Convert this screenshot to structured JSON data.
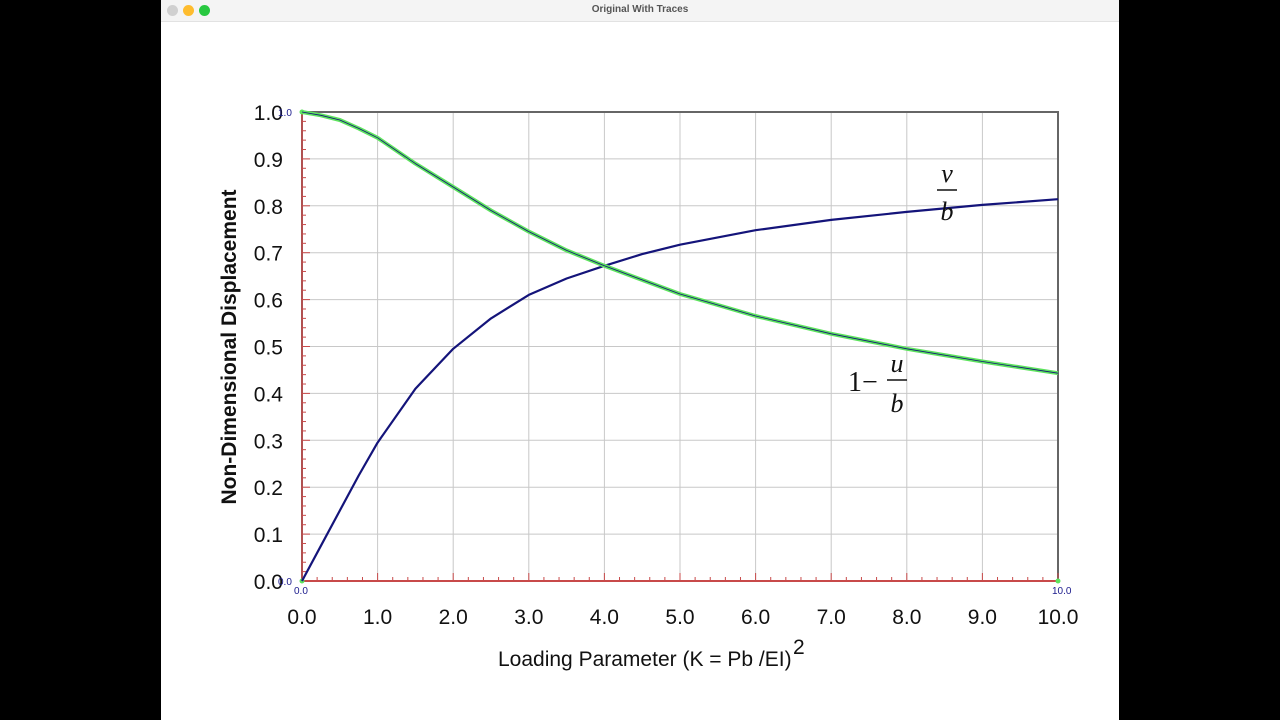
{
  "window": {
    "title": "Original With Traces"
  },
  "chart_data": {
    "type": "line",
    "xlabel": "Loading Parameter  (K = Pb  /EI)",
    "xlabel_superscript": "2",
    "ylabel": "Non-Dimensional Displacement",
    "xlim": [
      0,
      10
    ],
    "ylim": [
      0,
      1
    ],
    "x_ticks": [
      "0.0",
      "1.0",
      "2.0",
      "3.0",
      "4.0",
      "5.0",
      "6.0",
      "7.0",
      "8.0",
      "9.0",
      "10.0"
    ],
    "y_ticks": [
      "0.0",
      "0.1",
      "0.2",
      "0.3",
      "0.4",
      "0.5",
      "0.6",
      "0.7",
      "0.8",
      "0.9",
      "1.0"
    ],
    "grid": true,
    "trace_labels": {
      "y_top": "1.0",
      "y_bottom": "0.0",
      "x_left": "0.0",
      "x_right": "10.0"
    },
    "series": [
      {
        "label_num": "v",
        "label_den": "b",
        "color": "#14147a",
        "x": [
          0,
          0.25,
          0.5,
          0.75,
          1.0,
          1.5,
          2.0,
          2.5,
          3.0,
          3.5,
          4.0,
          4.5,
          5.0,
          6.0,
          7.0,
          8.0,
          9.0,
          10.0
        ],
        "y": [
          0,
          0.075,
          0.15,
          0.225,
          0.295,
          0.41,
          0.495,
          0.56,
          0.61,
          0.645,
          0.672,
          0.697,
          0.717,
          0.748,
          0.77,
          0.787,
          0.802,
          0.814
        ]
      },
      {
        "label_prefix": "1−",
        "label_num": "u",
        "label_den": "b",
        "color": "#14147a",
        "highlight": "#5ee35e",
        "x": [
          0,
          0.25,
          0.5,
          0.75,
          1.0,
          1.5,
          2.0,
          2.5,
          3.0,
          3.5,
          4.0,
          5.0,
          6.0,
          7.0,
          8.0,
          9.0,
          10.0
        ],
        "y": [
          1.0,
          0.993,
          0.983,
          0.965,
          0.945,
          0.89,
          0.84,
          0.79,
          0.745,
          0.705,
          0.672,
          0.612,
          0.565,
          0.527,
          0.495,
          0.468,
          0.443
        ]
      }
    ]
  }
}
